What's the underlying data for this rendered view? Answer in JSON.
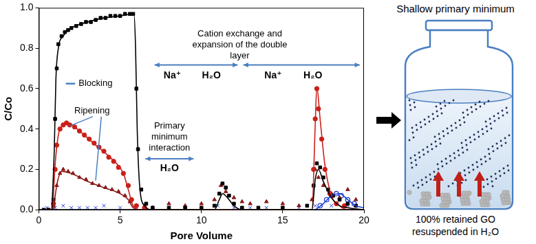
{
  "chart_data": {
    "type": "scatter",
    "x_label": "Pore Volume",
    "y_label": "C/Co",
    "xlim": [
      0,
      20
    ],
    "ylim": [
      0,
      1
    ],
    "xticks": [
      0,
      5,
      10,
      15,
      20
    ],
    "yticks": [
      {
        "value": 0,
        "label": "0.0"
      },
      0.2,
      0.4,
      0.6,
      0.8,
      {
        "value": 1,
        "label": "1.0"
      }
    ],
    "grid": false,
    "annotations": [
      "Cation exchange and expansion of the double layer",
      "Na⁺",
      "H₂O",
      "Na⁺",
      "H₂O",
      "Blocking",
      "Ripening",
      "Primary minimum interaction",
      "H₂O"
    ],
    "series": [
      {
        "type": "scatter",
        "color": "#000000",
        "marker": "square",
        "x": [
          0.3,
          0.6,
          0.9,
          1.0,
          1.1,
          1.2,
          1.4,
          1.6,
          1.8,
          2.0,
          2.3,
          2.6,
          2.9,
          3.2,
          3.5,
          3.8,
          4.1,
          4.4,
          4.7,
          5.0,
          5.3,
          5.6,
          5.8,
          6.0,
          6.1,
          6.3,
          6.6,
          7,
          8,
          9,
          10,
          10.8,
          11.1,
          11.3,
          11.5,
          11.7,
          12.0,
          12.5,
          13.5,
          15,
          16.5,
          16.9,
          17.1,
          17.3,
          17.5,
          17.8,
          18.1,
          18.5,
          19,
          19.5
        ],
        "values": [
          0,
          0,
          0.05,
          0.45,
          0.7,
          0.82,
          0.86,
          0.88,
          0.89,
          0.9,
          0.91,
          0.92,
          0.93,
          0.93,
          0.94,
          0.95,
          0.95,
          0.96,
          0.96,
          0.96,
          0.97,
          0.97,
          0.97,
          0.6,
          0.3,
          0.1,
          0.03,
          0.01,
          0.01,
          0.01,
          0.01,
          0.02,
          0.08,
          0.13,
          0.11,
          0.07,
          0.03,
          0.01,
          0.01,
          0.01,
          0.02,
          0.12,
          0.23,
          0.21,
          0.16,
          0.1,
          0.07,
          0.05,
          0.03,
          0.02
        ]
      },
      {
        "type": "line",
        "color": "#000000",
        "marker": "none",
        "line_style": "solid",
        "x": [
          0.8,
          0.95,
          1.05,
          1.2,
          1.5,
          2,
          3,
          4,
          5,
          5.85,
          5.95,
          6.05,
          6.2,
          6.5,
          7,
          10.8,
          11.1,
          11.3,
          11.6,
          12,
          12.5,
          16.8,
          17,
          17.2,
          17.5,
          18,
          18.5,
          19,
          20
        ],
        "values": [
          0,
          0.3,
          0.65,
          0.8,
          0.86,
          0.9,
          0.93,
          0.95,
          0.96,
          0.97,
          0.8,
          0.4,
          0.12,
          0.02,
          0,
          0,
          0.05,
          0.08,
          0.06,
          0.02,
          0,
          0,
          0.15,
          0.2,
          0.14,
          0.06,
          0.02,
          0.01,
          0
        ]
      },
      {
        "type": "scatter",
        "color": "#cc1f1a",
        "marker": "circle",
        "x": [
          0.9,
          1.0,
          1.1,
          1.3,
          1.5,
          1.7,
          1.9,
          2.2,
          2.5,
          2.8,
          3.1,
          3.4,
          3.7,
          4.0,
          4.3,
          4.6,
          4.9,
          5.2,
          5.5,
          5.7,
          6.0,
          6.5,
          16.9,
          17.0,
          17.1,
          17.2,
          17.4,
          17.6,
          17.9,
          18.3,
          18.8
        ],
        "values": [
          0.03,
          0.2,
          0.32,
          0.4,
          0.42,
          0.43,
          0.42,
          0.41,
          0.39,
          0.37,
          0.35,
          0.33,
          0.31,
          0.29,
          0.26,
          0.24,
          0.21,
          0.18,
          0.12,
          0.05,
          0.02,
          0.01,
          0.2,
          0.45,
          0.6,
          0.5,
          0.35,
          0.2,
          0.08,
          0.03,
          0.02
        ]
      },
      {
        "type": "line",
        "color": "#cc1f1a",
        "marker": "none",
        "line_style": "solid",
        "x": [
          0.85,
          1.0,
          1.2,
          1.5,
          1.8,
          2.5,
          3.5,
          4.5,
          5.2,
          5.5,
          5.8,
          6.2,
          16.8,
          17.0,
          17.1,
          17.3,
          17.6,
          18,
          18.5,
          19,
          20
        ],
        "values": [
          0,
          0.22,
          0.37,
          0.42,
          0.43,
          0.39,
          0.32,
          0.25,
          0.18,
          0.1,
          0.02,
          0,
          0,
          0.42,
          0.61,
          0.45,
          0.22,
          0.07,
          0.02,
          0,
          0
        ]
      },
      {
        "type": "scatter",
        "color": "#8b1a1a",
        "marker": "triangle",
        "x": [
          0.9,
          1.1,
          1.3,
          1.5,
          1.8,
          2.1,
          2.5,
          2.9,
          3.3,
          3.7,
          4.1,
          4.5,
          4.9,
          5.3,
          5.6,
          6.0,
          6.5,
          7,
          8,
          9,
          10,
          10.8,
          11.2,
          11.5,
          12,
          12.5,
          13,
          14,
          15,
          16,
          16.8,
          17.0,
          17.2,
          17.5,
          18,
          18.5,
          19,
          19.5
        ],
        "values": [
          0.02,
          0.12,
          0.18,
          0.2,
          0.19,
          0.18,
          0.16,
          0.15,
          0.13,
          0.12,
          0.11,
          0.1,
          0.09,
          0.07,
          0.04,
          0.02,
          0.02,
          0.01,
          0.03,
          0.02,
          0.03,
          0.05,
          0.12,
          0.09,
          0.06,
          0.04,
          0.03,
          0.04,
          0.03,
          0.02,
          0.05,
          0.2,
          0.16,
          0.12,
          0.08,
          0.06,
          0.1,
          0.05
        ]
      },
      {
        "type": "line",
        "color": "#8b1a1a",
        "marker": "none",
        "line_style": "solid",
        "x": [
          0.9,
          1.1,
          1.4,
          2,
          3,
          4,
          5,
          5.5,
          5.8,
          6.2
        ],
        "values": [
          0,
          0.12,
          0.19,
          0.18,
          0.14,
          0.11,
          0.08,
          0.05,
          0.01,
          0
        ]
      },
      {
        "type": "scatter",
        "color": "#1f3fd6",
        "marker": "x",
        "x": [
          0.5,
          1,
          1.5,
          2,
          2.5,
          3,
          3.5,
          4,
          5,
          6,
          7,
          8,
          9,
          10,
          11,
          12,
          13,
          14,
          15,
          16,
          17,
          18,
          19
        ],
        "values": [
          0.01,
          0.01,
          0.02,
          0.01,
          0.01,
          0.01,
          0.01,
          0.02,
          0.01,
          0.01,
          0.01,
          0.01,
          0.01,
          0.01,
          0.02,
          0.01,
          0.01,
          0.01,
          0.01,
          0.01,
          0.02,
          0.02,
          0.02
        ]
      },
      {
        "type": "scatter",
        "color": "#1f3fd6",
        "marker": "open_circle",
        "x": [
          17.3,
          17.7,
          18,
          18.3,
          18.6,
          19,
          19.4
        ],
        "values": [
          0.02,
          0.05,
          0.07,
          0.08,
          0.07,
          0.05,
          0.03
        ]
      },
      {
        "type": "line",
        "color": "#1f3fd6",
        "marker": "none",
        "line_style": "solid",
        "x": [
          17,
          17.5,
          18,
          18.5,
          19,
          19.5,
          20
        ],
        "values": [
          0,
          0.03,
          0.07,
          0.08,
          0.05,
          0.02,
          0.01
        ]
      }
    ]
  },
  "diagram": {
    "title": "Shallow primary minimum",
    "caption": "100% retained GO resuspended in H₂O"
  }
}
